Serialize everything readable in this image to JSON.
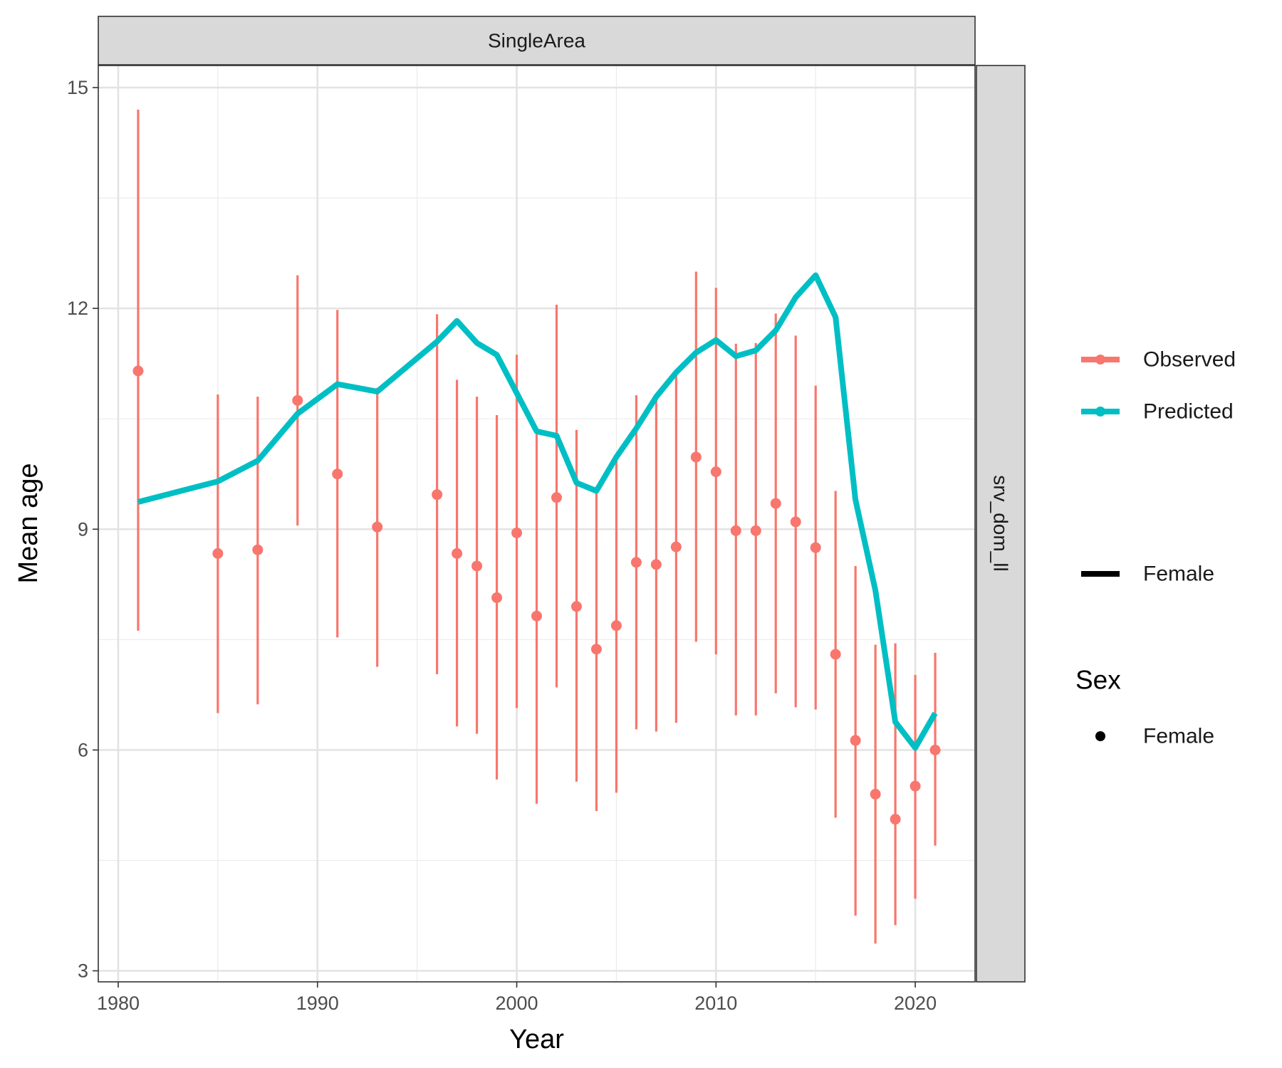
{
  "chart_data": {
    "type": "line",
    "facet_top": "SingleArea",
    "facet_right": "srv_dom_ll",
    "xlabel": "Year",
    "ylabel": "Mean age",
    "xlim": [
      1979,
      2023
    ],
    "ylim": [
      2.85,
      15.3
    ],
    "x_ticks": [
      1980,
      1990,
      2000,
      2010,
      2020
    ],
    "y_ticks": [
      3,
      6,
      9,
      12,
      15
    ],
    "grid": true,
    "legend_position": "right",
    "legend": {
      "series_entries": [
        "Observed",
        "Predicted"
      ],
      "line_entry": "Female",
      "shape_title": "Sex",
      "shape_entry": "Female"
    },
    "colors": {
      "observed": "#F8766D",
      "predicted": "#00BFC4"
    },
    "series": [
      {
        "name": "Observed",
        "kind": "points_with_errorbars",
        "x": [
          1981,
          1985,
          1987,
          1989,
          1991,
          1993,
          1996,
          1997,
          1998,
          1999,
          2000,
          2001,
          2002,
          2003,
          2004,
          2005,
          2006,
          2007,
          2008,
          2009,
          2010,
          2011,
          2012,
          2013,
          2014,
          2015,
          2016,
          2017,
          2018,
          2019,
          2020,
          2021
        ],
        "y": [
          11.15,
          8.67,
          8.72,
          10.75,
          9.75,
          9.03,
          9.47,
          8.67,
          8.5,
          8.07,
          8.95,
          7.82,
          9.43,
          7.95,
          7.37,
          7.69,
          8.55,
          8.52,
          8.76,
          9.98,
          9.78,
          8.98,
          8.98,
          9.35,
          9.1,
          8.75,
          7.3,
          6.13,
          5.4,
          5.06,
          5.51,
          6.0
        ],
        "lower": [
          7.62,
          6.5,
          6.62,
          9.05,
          7.53,
          7.13,
          7.03,
          6.32,
          6.22,
          5.6,
          6.57,
          5.27,
          6.85,
          5.57,
          5.17,
          5.42,
          6.28,
          6.25,
          6.37,
          7.47,
          7.3,
          6.47,
          6.47,
          6.77,
          6.58,
          6.55,
          5.08,
          3.75,
          3.37,
          3.62,
          3.98,
          4.7
        ],
        "upper": [
          14.7,
          10.83,
          10.8,
          12.45,
          11.98,
          10.92,
          11.92,
          11.03,
          10.8,
          10.55,
          11.37,
          10.35,
          12.05,
          10.35,
          9.58,
          9.98,
          10.82,
          10.78,
          11.15,
          12.5,
          12.28,
          11.52,
          11.53,
          11.93,
          11.63,
          10.95,
          9.52,
          8.5,
          7.43,
          7.45,
          7.02,
          7.32
        ]
      },
      {
        "name": "Predicted",
        "kind": "line",
        "x": [
          1981,
          1985,
          1987,
          1989,
          1991,
          1993,
          1996,
          1997,
          1998,
          1999,
          2000,
          2001,
          2002,
          2003,
          2004,
          2005,
          2006,
          2007,
          2008,
          2009,
          2010,
          2011,
          2012,
          2013,
          2014,
          2015,
          2016,
          2017,
          2018,
          2019,
          2020,
          2021
        ],
        "y": [
          9.37,
          9.65,
          9.93,
          10.57,
          10.97,
          10.87,
          11.55,
          11.83,
          11.53,
          11.37,
          10.85,
          10.33,
          10.27,
          9.63,
          9.52,
          9.98,
          10.37,
          10.8,
          11.13,
          11.4,
          11.57,
          11.35,
          11.43,
          11.7,
          12.15,
          12.45,
          11.88,
          9.4,
          8.17,
          6.38,
          6.03,
          6.5
        ]
      }
    ]
  }
}
